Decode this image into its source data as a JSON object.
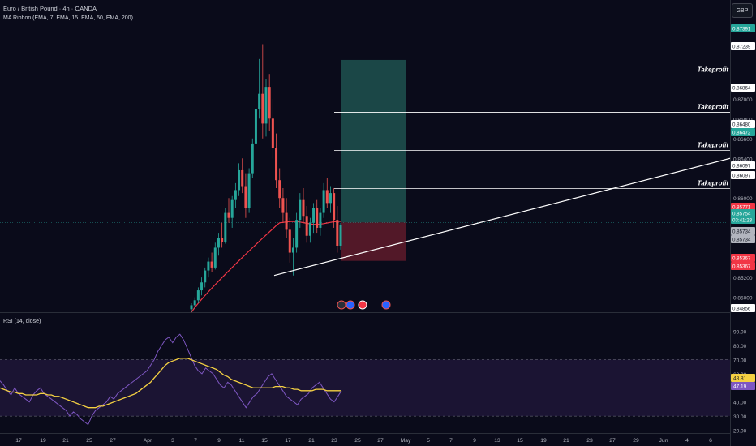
{
  "header": {
    "symbol_title": "Euro / British Pound · 4h · OANDA",
    "indicator_ma": "MA Ribbon (EMA, 7, EMA, 15, EMA, 50, EMA, 200)",
    "indicator_rsi": "RSI (14, close)",
    "currency_button": "GBP"
  },
  "colors": {
    "background": "#0a0b1a",
    "bull": "#26a69a",
    "bear": "#ef5350",
    "ma200": "#f23645",
    "rsi_line": "#7e57c2",
    "rsi_ma": "#f5d142",
    "profit_zone": "#1d4e4c",
    "loss_zone": "#5a1a2a",
    "trendline": "#ffffff"
  },
  "chart_data": [
    {
      "type": "candlestick",
      "title": "Euro / British Pound · 4h · OANDA",
      "y_axis_ticks": [
        "0.87000",
        "0.86800",
        "0.86600",
        "0.86400",
        "0.86000",
        "0.85200",
        "0.85000"
      ],
      "ylim": [
        0.8485,
        0.8775
      ],
      "x_axis_ticks": [
        "17",
        "19",
        "21",
        "25",
        "27",
        "Apr",
        "3",
        "7",
        "9",
        "11",
        "15",
        "17",
        "21",
        "23",
        "25",
        "27",
        "May",
        "5",
        "7",
        "9",
        "13",
        "15",
        "19",
        "21",
        "23",
        "27",
        "29",
        "Jun",
        "4",
        "6"
      ],
      "price_labels": [
        {
          "text": "0.87391",
          "kind": "green"
        },
        {
          "text": "0.87239",
          "kind": "white"
        },
        {
          "text": "0.86864",
          "kind": "white"
        },
        {
          "text": "0.86480",
          "kind": "white"
        },
        {
          "text": "0.86472",
          "kind": "green"
        },
        {
          "text": "0.86097",
          "kind": "white"
        },
        {
          "text": "0.86097",
          "kind": "white"
        },
        {
          "text": "0.85771",
          "kind": "red"
        },
        {
          "text": "0.85754",
          "kind": "green"
        },
        {
          "text": "03:41:23",
          "kind": "green"
        },
        {
          "text": "0.85734",
          "kind": "gray"
        },
        {
          "text": "0.85734",
          "kind": "gray"
        },
        {
          "text": "0.85367",
          "kind": "red"
        },
        {
          "text": "0.85367",
          "kind": "red"
        },
        {
          "text": "0.84856",
          "kind": "white"
        }
      ],
      "take_profit_label": "Takeprofit",
      "take_profits": [
        0.87239,
        0.86864,
        0.8648,
        0.86097
      ],
      "position": {
        "entry": 0.85754,
        "target": 0.87391,
        "stop": 0.85367
      },
      "trendline": {
        "from": 0.8522,
        "to": 0.864
      },
      "candles": [
        {
          "o": 0.8488,
          "h": 0.8494,
          "l": 0.8485,
          "c": 0.8492
        },
        {
          "o": 0.8492,
          "h": 0.85,
          "l": 0.8488,
          "c": 0.8497
        },
        {
          "o": 0.8497,
          "h": 0.851,
          "l": 0.8494,
          "c": 0.8507
        },
        {
          "o": 0.8507,
          "h": 0.852,
          "l": 0.8502,
          "c": 0.8515
        },
        {
          "o": 0.8515,
          "h": 0.853,
          "l": 0.851,
          "c": 0.8527
        },
        {
          "o": 0.8527,
          "h": 0.854,
          "l": 0.852,
          "c": 0.8536
        },
        {
          "o": 0.8536,
          "h": 0.8545,
          "l": 0.8525,
          "c": 0.853
        },
        {
          "o": 0.853,
          "h": 0.8555,
          "l": 0.8528,
          "c": 0.855
        },
        {
          "o": 0.855,
          "h": 0.8565,
          "l": 0.8542,
          "c": 0.856
        },
        {
          "o": 0.856,
          "h": 0.8575,
          "l": 0.855,
          "c": 0.8556
        },
        {
          "o": 0.8556,
          "h": 0.859,
          "l": 0.8554,
          "c": 0.8585
        },
        {
          "o": 0.8585,
          "h": 0.86,
          "l": 0.8575,
          "c": 0.858
        },
        {
          "o": 0.858,
          "h": 0.8602,
          "l": 0.857,
          "c": 0.8598
        },
        {
          "o": 0.8598,
          "h": 0.8615,
          "l": 0.859,
          "c": 0.8608
        },
        {
          "o": 0.8608,
          "h": 0.8635,
          "l": 0.8602,
          "c": 0.8628
        },
        {
          "o": 0.8628,
          "h": 0.864,
          "l": 0.8605,
          "c": 0.8612
        },
        {
          "o": 0.8612,
          "h": 0.8625,
          "l": 0.858,
          "c": 0.859
        },
        {
          "o": 0.859,
          "h": 0.863,
          "l": 0.8585,
          "c": 0.8625
        },
        {
          "o": 0.8625,
          "h": 0.866,
          "l": 0.862,
          "c": 0.8655
        },
        {
          "o": 0.8655,
          "h": 0.87,
          "l": 0.8645,
          "c": 0.869
        },
        {
          "o": 0.869,
          "h": 0.874,
          "l": 0.868,
          "c": 0.8705
        },
        {
          "o": 0.8705,
          "h": 0.8755,
          "l": 0.866,
          "c": 0.8675
        },
        {
          "o": 0.8675,
          "h": 0.872,
          "l": 0.8662,
          "c": 0.8712
        },
        {
          "o": 0.8712,
          "h": 0.8725,
          "l": 0.8668,
          "c": 0.868
        },
        {
          "o": 0.868,
          "h": 0.87,
          "l": 0.864,
          "c": 0.865
        },
        {
          "o": 0.865,
          "h": 0.8665,
          "l": 0.861,
          "c": 0.8618
        },
        {
          "o": 0.8618,
          "h": 0.863,
          "l": 0.859,
          "c": 0.86
        },
        {
          "o": 0.86,
          "h": 0.861,
          "l": 0.8575,
          "c": 0.8585
        },
        {
          "o": 0.8585,
          "h": 0.86,
          "l": 0.856,
          "c": 0.8568
        },
        {
          "o": 0.8568,
          "h": 0.858,
          "l": 0.8535,
          "c": 0.8545
        },
        {
          "o": 0.8545,
          "h": 0.856,
          "l": 0.8522,
          "c": 0.855
        },
        {
          "o": 0.855,
          "h": 0.8585,
          "l": 0.8545,
          "c": 0.8578
        },
        {
          "o": 0.8578,
          "h": 0.8605,
          "l": 0.857,
          "c": 0.8598
        },
        {
          "o": 0.8598,
          "h": 0.861,
          "l": 0.8575,
          "c": 0.8582
        },
        {
          "o": 0.8582,
          "h": 0.8592,
          "l": 0.8555,
          "c": 0.8562
        },
        {
          "o": 0.8562,
          "h": 0.858,
          "l": 0.8555,
          "c": 0.8575
        },
        {
          "o": 0.8575,
          "h": 0.8595,
          "l": 0.8565,
          "c": 0.859
        },
        {
          "o": 0.859,
          "h": 0.8598,
          "l": 0.8565,
          "c": 0.857
        },
        {
          "o": 0.857,
          "h": 0.859,
          "l": 0.8562,
          "c": 0.8585
        },
        {
          "o": 0.8585,
          "h": 0.8615,
          "l": 0.858,
          "c": 0.8608
        },
        {
          "o": 0.8608,
          "h": 0.862,
          "l": 0.859,
          "c": 0.8595
        },
        {
          "o": 0.8595,
          "h": 0.8612,
          "l": 0.8585,
          "c": 0.8605
        },
        {
          "o": 0.8605,
          "h": 0.861,
          "l": 0.857,
          "c": 0.8578
        },
        {
          "o": 0.8578,
          "h": 0.8592,
          "l": 0.8545,
          "c": 0.8552
        },
        {
          "o": 0.8552,
          "h": 0.8575,
          "l": 0.8548,
          "c": 0.8573
        }
      ]
    },
    {
      "type": "line",
      "title": "RSI (14, close)",
      "y_axis_ticks": [
        "90.00",
        "80.00",
        "70.00",
        "60.00",
        "40.00",
        "30.00",
        "20.00"
      ],
      "ylim": [
        18,
        95
      ],
      "levels": [
        70,
        50,
        30
      ],
      "last_labels": [
        {
          "text": "48.81",
          "kind": "yellow"
        },
        {
          "text": "47.19",
          "kind": "purple"
        }
      ],
      "series": [
        {
          "values": [
            55,
            52,
            48,
            45,
            50,
            46,
            44,
            42,
            40,
            45,
            48,
            50,
            46,
            44,
            42,
            40,
            38,
            36,
            34,
            30,
            33,
            31,
            28,
            26,
            24,
            30,
            34,
            36,
            38,
            40,
            44,
            42,
            46,
            48,
            50,
            52,
            54,
            56,
            58,
            60,
            62,
            66,
            70,
            76,
            80,
            84,
            86,
            82,
            86,
            88,
            84,
            78,
            72,
            66,
            62,
            60,
            64,
            62,
            60,
            56,
            52,
            50,
            54,
            52,
            48,
            44,
            40,
            36,
            40,
            44,
            46,
            50,
            54,
            58,
            60,
            56,
            52,
            48,
            44,
            42,
            40,
            38,
            42,
            44,
            46,
            50,
            52,
            54,
            50,
            46,
            42,
            40,
            44,
            48
          ]
        },
        {
          "values": [
            50,
            49,
            48,
            47,
            47,
            46,
            46,
            45,
            45,
            45,
            45,
            46,
            46,
            45,
            45,
            44,
            44,
            43,
            42,
            41,
            40,
            39,
            38,
            37,
            36,
            36,
            36,
            37,
            37,
            38,
            39,
            40,
            41,
            42,
            43,
            44,
            45,
            46,
            48,
            50,
            52,
            54,
            57,
            60,
            63,
            66,
            68,
            69,
            70,
            71,
            71,
            71,
            70,
            69,
            68,
            67,
            66,
            65,
            64,
            63,
            61,
            59,
            58,
            56,
            55,
            54,
            53,
            52,
            51,
            50,
            50,
            50,
            50,
            50,
            50,
            51,
            51,
            51,
            50,
            50,
            49,
            49,
            48,
            48,
            48,
            48,
            49,
            49,
            49,
            48,
            48,
            48,
            48,
            48
          ]
        }
      ]
    }
  ]
}
